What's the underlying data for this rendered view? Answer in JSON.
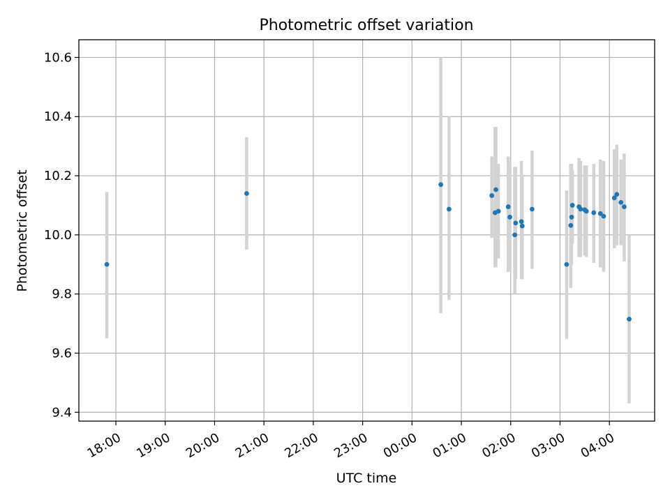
{
  "chart_data": {
    "type": "scatter",
    "title": "Photometric offset variation",
    "xlabel": "UTC time",
    "ylabel": "Photometric offset",
    "x_type": "time",
    "x_ticks": [
      "18:00",
      "19:00",
      "20:00",
      "21:00",
      "22:00",
      "23:00",
      "00:00",
      "01:00",
      "02:00",
      "03:00",
      "04:00"
    ],
    "xlim": [
      "17:15",
      "04:55"
    ],
    "ylim": [
      9.37,
      10.66
    ],
    "y_ticks": [
      9.4,
      9.6,
      9.8,
      10.0,
      10.2,
      10.4,
      10.6
    ],
    "y_tick_labels": [
      "9.4",
      "9.6",
      "9.8",
      "10.0",
      "10.2",
      "10.4",
      "10.6"
    ],
    "grid": true,
    "colors": {
      "point": "#1f77b4",
      "errorbar": "#d3d3d3",
      "grid": "#b0b0b0"
    },
    "points": [
      {
        "time": "17:49",
        "y": 9.9,
        "lo": 9.65,
        "hi": 10.145
      },
      {
        "time": "20:39",
        "y": 10.14,
        "lo": 9.95,
        "hi": 10.33
      },
      {
        "time": "00:35",
        "y": 10.17,
        "lo": 9.735,
        "hi": 10.6
      },
      {
        "time": "00:45",
        "y": 10.087,
        "lo": 9.78,
        "hi": 10.4
      },
      {
        "time": "01:37",
        "y": 10.133,
        "lo": 9.99,
        "hi": 10.265
      },
      {
        "time": "01:41",
        "y": 10.075,
        "lo": 9.89,
        "hi": 10.365
      },
      {
        "time": "01:42",
        "y": 10.153,
        "lo": 9.89,
        "hi": 10.365
      },
      {
        "time": "01:45",
        "y": 10.08,
        "lo": 9.92,
        "hi": 10.24
      },
      {
        "time": "01:57",
        "y": 10.095,
        "lo": 9.875,
        "hi": 10.265
      },
      {
        "time": "01:59",
        "y": 10.06,
        "lo": 9.88,
        "hi": 10.25
      },
      {
        "time": "02:05",
        "y": 10.0,
        "lo": 9.8,
        "hi": 10.23
      },
      {
        "time": "02:06",
        "y": 10.04,
        "lo": 9.85,
        "hi": 10.23
      },
      {
        "time": "02:13",
        "y": 10.045,
        "lo": 9.85,
        "hi": 10.25
      },
      {
        "time": "02:14",
        "y": 10.03,
        "lo": 9.85,
        "hi": 10.2
      },
      {
        "time": "02:26",
        "y": 10.087,
        "lo": 9.885,
        "hi": 10.285
      },
      {
        "time": "03:08",
        "y": 9.9,
        "lo": 9.648,
        "hi": 10.15
      },
      {
        "time": "03:13",
        "y": 10.032,
        "lo": 9.82,
        "hi": 10.24
      },
      {
        "time": "03:14",
        "y": 10.06,
        "lo": 9.9,
        "hi": 10.24
      },
      {
        "time": "03:15",
        "y": 10.1,
        "lo": 9.97,
        "hi": 10.22
      },
      {
        "time": "03:23",
        "y": 10.095,
        "lo": 9.925,
        "hi": 10.26
      },
      {
        "time": "03:25",
        "y": 10.087,
        "lo": 9.925,
        "hi": 10.25
      },
      {
        "time": "03:30",
        "y": 10.085,
        "lo": 9.93,
        "hi": 10.235
      },
      {
        "time": "03:32",
        "y": 10.08,
        "lo": 9.925,
        "hi": 10.235
      },
      {
        "time": "03:41",
        "y": 10.075,
        "lo": 9.905,
        "hi": 10.24
      },
      {
        "time": "03:49",
        "y": 10.072,
        "lo": 9.89,
        "hi": 10.255
      },
      {
        "time": "03:53",
        "y": 10.063,
        "lo": 9.875,
        "hi": 10.25
      },
      {
        "time": "04:06",
        "y": 10.125,
        "lo": 9.955,
        "hi": 10.29
      },
      {
        "time": "04:09",
        "y": 10.137,
        "lo": 9.965,
        "hi": 10.305
      },
      {
        "time": "04:14",
        "y": 10.11,
        "lo": 9.965,
        "hi": 10.255
      },
      {
        "time": "04:18",
        "y": 10.095,
        "lo": 9.91,
        "hi": 10.275
      },
      {
        "time": "04:24",
        "y": 9.715,
        "lo": 9.43,
        "hi": 10.0
      }
    ]
  }
}
